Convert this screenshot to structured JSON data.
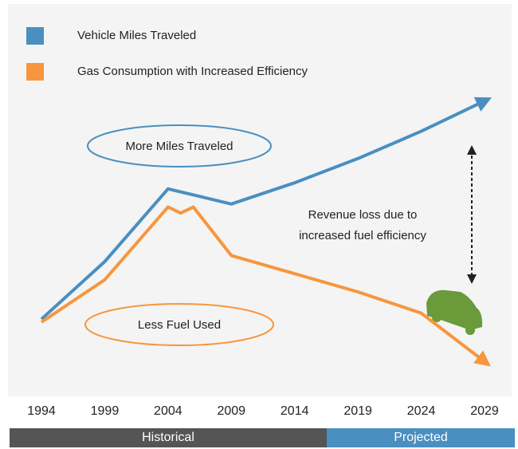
{
  "chart_data": {
    "type": "line",
    "series": [
      {
        "name": "Vehicle Miles Traveled",
        "color": "#4a8fc0",
        "x": [
          1994,
          1999,
          2004,
          2009,
          2014,
          2019,
          2024,
          2029
        ],
        "values": [
          21,
          40,
          64,
          59,
          66,
          74,
          83,
          93
        ]
      },
      {
        "name": "Gas Consumption with Increased Efficiency",
        "color": "#f7963e",
        "x": [
          1994,
          1999,
          2004,
          2005,
          2006,
          2009,
          2014,
          2019,
          2024,
          2029
        ],
        "values": [
          20,
          34,
          58,
          56,
          58,
          42,
          36,
          30,
          23,
          7
        ]
      }
    ],
    "xlim": [
      1994,
      2029
    ],
    "xticks": [
      1994,
      1999,
      2004,
      2009,
      2014,
      2019,
      2024,
      2029
    ],
    "ylim": [
      0,
      100
    ],
    "miles_label": "More Miles Traveled",
    "fuel_label": "Less Fuel Used",
    "revenue_label": [
      "Revenue loss due to",
      "increased fuel efficiency"
    ],
    "periods": [
      "Historical",
      "Projected"
    ]
  }
}
